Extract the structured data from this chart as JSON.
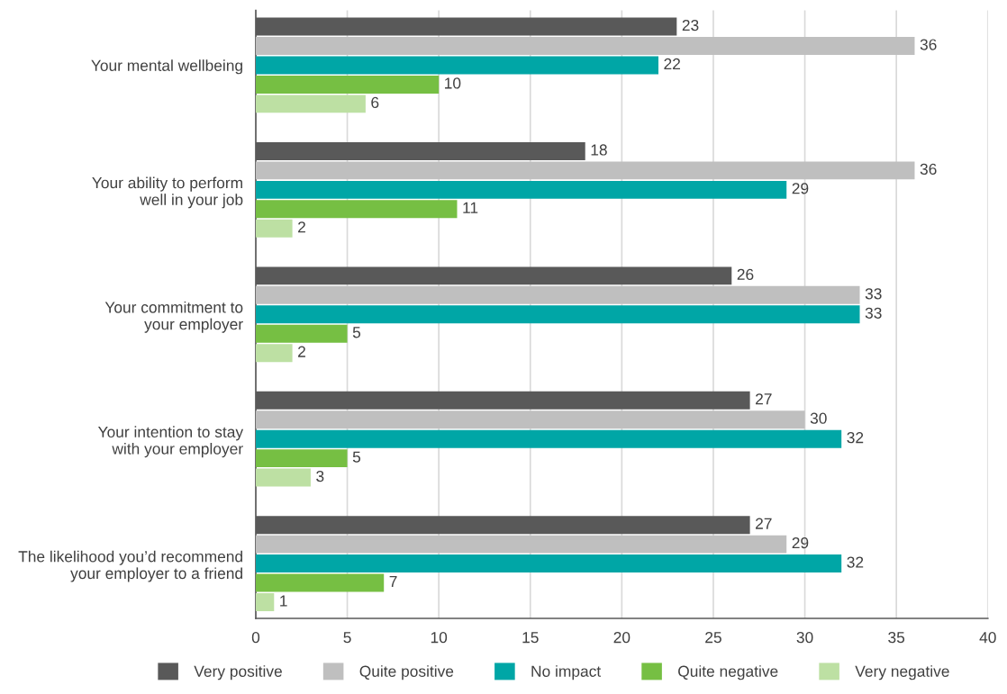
{
  "chart_data": {
    "type": "bar",
    "orientation": "horizontal",
    "categories": [
      "Your mental wellbeing",
      "Your ability to perform\nwell in your job",
      "Your commitment to\nyour employer",
      "Your intention to stay\nwith your employer",
      "The likelihood you’d recommend\nyour employer to a friend"
    ],
    "series": [
      {
        "name": "Very positive",
        "color": "#595959",
        "values": [
          23,
          18,
          26,
          27,
          27
        ]
      },
      {
        "name": "Quite positive",
        "color": "#bfbfbf",
        "values": [
          36,
          36,
          33,
          30,
          29
        ]
      },
      {
        "name": "No impact",
        "color": "#00a6a6",
        "values": [
          22,
          29,
          33,
          32,
          32
        ]
      },
      {
        "name": "Quite negative",
        "color": "#76bf43",
        "values": [
          10,
          11,
          5,
          5,
          7
        ]
      },
      {
        "name": "Very negative",
        "color": "#bde0a3",
        "values": [
          6,
          2,
          2,
          3,
          1
        ]
      }
    ],
    "xlim": [
      0,
      40
    ],
    "xticks": [
      0,
      5,
      10,
      15,
      20,
      25,
      30,
      35,
      40
    ],
    "grid": "x",
    "legend": "bottom",
    "data_labels": true
  }
}
